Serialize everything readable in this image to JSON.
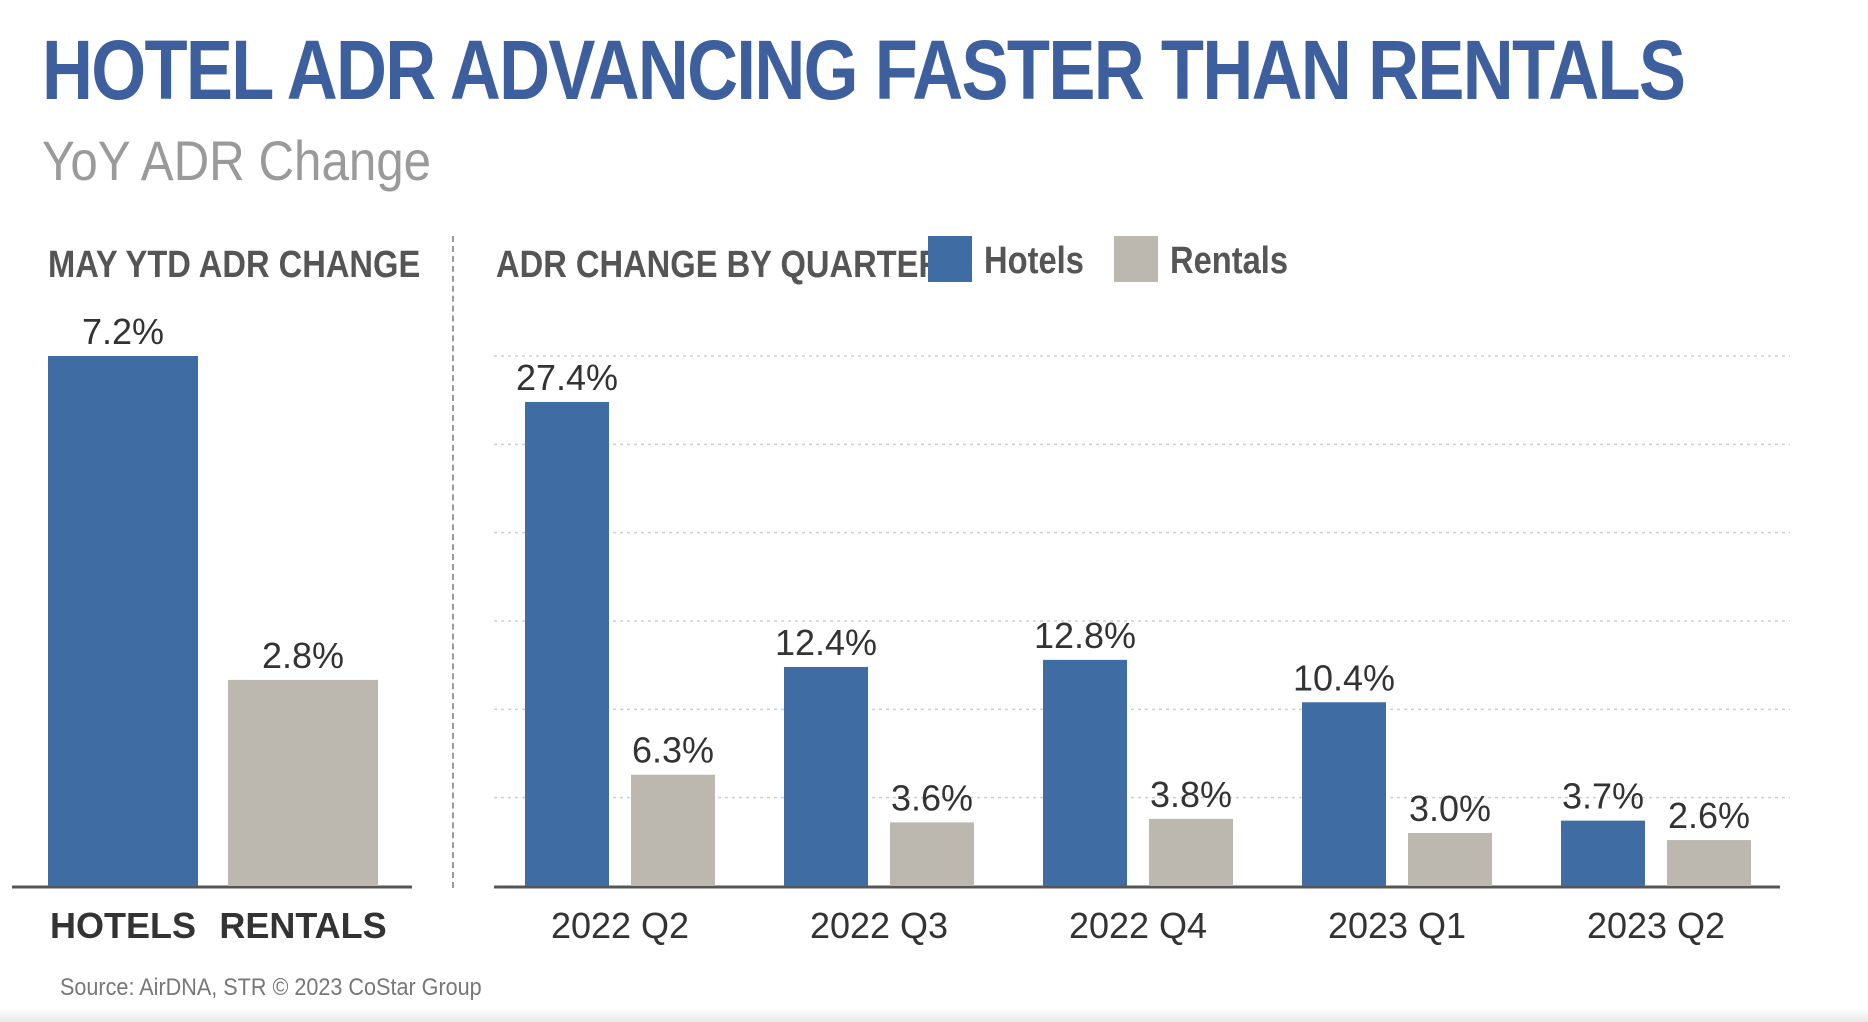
{
  "title": "HOTEL ADR ADVANCING FASTER THAN RENTALS",
  "subtitle": "YoY ADR Change",
  "source": "Source: AirDNA, STR © 2023 CoStar Group",
  "colors": {
    "hotels": "#3f6ca2",
    "rentals": "#bcb8b0",
    "title": "#3d5f9e"
  },
  "legend": [
    {
      "label": "Hotels",
      "color": "#3f6ca2"
    },
    {
      "label": "Rentals",
      "color": "#bcb8b0"
    }
  ],
  "chart_data": [
    {
      "type": "bar",
      "title": "MAY YTD ADR CHANGE",
      "categories": [
        "HOTELS",
        "RENTALS"
      ],
      "values": [
        7.2,
        2.8
      ],
      "value_labels": [
        "7.2%",
        "2.8%"
      ],
      "bar_colors": [
        "#3f6ca2",
        "#bcb8b0"
      ],
      "unit": "%",
      "ylim": [
        0,
        7.2
      ],
      "grid": false
    },
    {
      "type": "bar",
      "title": "ADR CHANGE BY QUARTER",
      "categories": [
        "2022 Q2",
        "2022 Q3",
        "2022 Q4",
        "2023 Q1",
        "2023 Q2"
      ],
      "series": [
        {
          "name": "Hotels",
          "values": [
            27.4,
            12.4,
            12.8,
            10.4,
            3.7
          ],
          "labels": [
            "27.4%",
            "12.4%",
            "12.8%",
            "10.4%",
            "3.7%"
          ]
        },
        {
          "name": "Rentals",
          "values": [
            6.3,
            3.6,
            3.8,
            3.0,
            2.6
          ],
          "labels": [
            "6.3%",
            "3.6%",
            "3.8%",
            "3.0%",
            "2.6%"
          ]
        }
      ],
      "unit": "%",
      "ylim": [
        0,
        30
      ],
      "grid": true,
      "legend_position": "top"
    }
  ]
}
